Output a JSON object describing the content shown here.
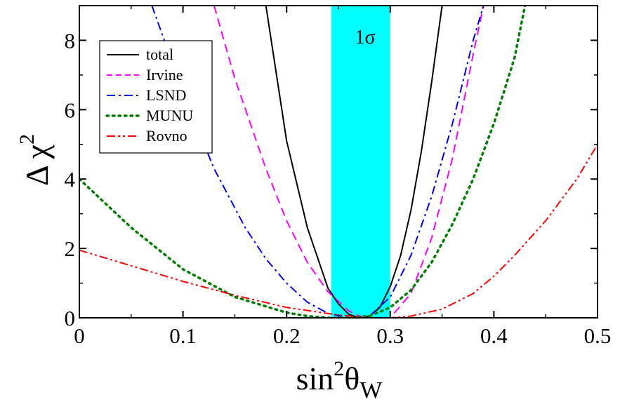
{
  "chart_data": {
    "type": "line",
    "xlabel": {
      "main": "sin",
      "sup": "2",
      "greek": "θ",
      "sub": "W"
    },
    "ylabel": {
      "main": "Δ χ",
      "sup": "2"
    },
    "xlim": [
      0,
      0.5
    ],
    "ylim": [
      0,
      9
    ],
    "x_ticks": [
      0,
      0.1,
      0.2,
      0.3,
      0.4,
      0.5
    ],
    "x_tick_labels": [
      "0",
      "0.1",
      "0.2",
      "0.3",
      "0.4",
      "0.5"
    ],
    "y_ticks": [
      0,
      2,
      4,
      6,
      8
    ],
    "y_tick_labels": [
      "0",
      "2",
      "4",
      "6",
      "8"
    ],
    "grid": false,
    "legend_position": "top-left",
    "band": {
      "label": "1σ",
      "x_range": [
        0.243,
        0.3
      ],
      "color": "#00ffff"
    },
    "series": [
      {
        "name": "total",
        "color": "#000000",
        "dash": "solid",
        "x": [
          0.18,
          0.2,
          0.22,
          0.24,
          0.25,
          0.26,
          0.27,
          0.28,
          0.29,
          0.3,
          0.31,
          0.32,
          0.33,
          0.34,
          0.35
        ],
        "y": [
          9.0,
          5.1,
          2.6,
          0.85,
          0.4,
          0.1,
          0.0,
          0.05,
          0.3,
          0.9,
          1.8,
          3.1,
          4.8,
          6.8,
          9.0
        ]
      },
      {
        "name": "Irvine",
        "color": "#ff00ff",
        "dash": "dashed",
        "x": [
          0.13,
          0.15,
          0.18,
          0.2,
          0.22,
          0.24,
          0.26,
          0.27,
          0.28,
          0.29,
          0.3,
          0.32,
          0.34,
          0.36,
          0.38,
          0.39
        ],
        "y": [
          9.0,
          6.9,
          4.3,
          2.8,
          1.6,
          0.75,
          0.2,
          0.05,
          0.0,
          0.0,
          0.0,
          0.7,
          2.3,
          4.6,
          7.6,
          9.0
        ]
      },
      {
        "name": "LSND",
        "color": "#0000ff",
        "dash": "dashdot",
        "x": [
          0.07,
          0.1,
          0.13,
          0.16,
          0.18,
          0.2,
          0.22,
          0.24,
          0.26,
          0.27,
          0.28,
          0.3,
          0.32,
          0.34,
          0.36,
          0.38,
          0.39
        ],
        "y": [
          9.0,
          6.5,
          4.3,
          2.6,
          1.7,
          1.0,
          0.45,
          0.13,
          0.0,
          0.0,
          0.05,
          0.6,
          1.8,
          3.5,
          5.6,
          8.0,
          9.0
        ]
      },
      {
        "name": "MUNU",
        "color": "#008000",
        "dash": "dotted",
        "x": [
          0.0,
          0.05,
          0.1,
          0.15,
          0.2,
          0.22,
          0.24,
          0.26,
          0.28,
          0.3,
          0.32,
          0.34,
          0.36,
          0.38,
          0.4,
          0.42,
          0.43
        ],
        "y": [
          4.0,
          2.6,
          1.4,
          0.6,
          0.15,
          0.05,
          0.0,
          0.0,
          0.05,
          0.3,
          0.8,
          1.6,
          2.7,
          4.0,
          5.6,
          7.5,
          9.0
        ]
      },
      {
        "name": "Rovno",
        "color": "#ff0000",
        "dash": "dashdotdot",
        "x": [
          0.0,
          0.05,
          0.1,
          0.15,
          0.2,
          0.25,
          0.28,
          0.3,
          0.32,
          0.35,
          0.38,
          0.4,
          0.42,
          0.45,
          0.48,
          0.5
        ],
        "y": [
          1.95,
          1.5,
          1.05,
          0.65,
          0.3,
          0.08,
          0.0,
          0.0,
          0.05,
          0.25,
          0.7,
          1.2,
          1.8,
          2.8,
          4.0,
          5.0
        ]
      }
    ]
  }
}
